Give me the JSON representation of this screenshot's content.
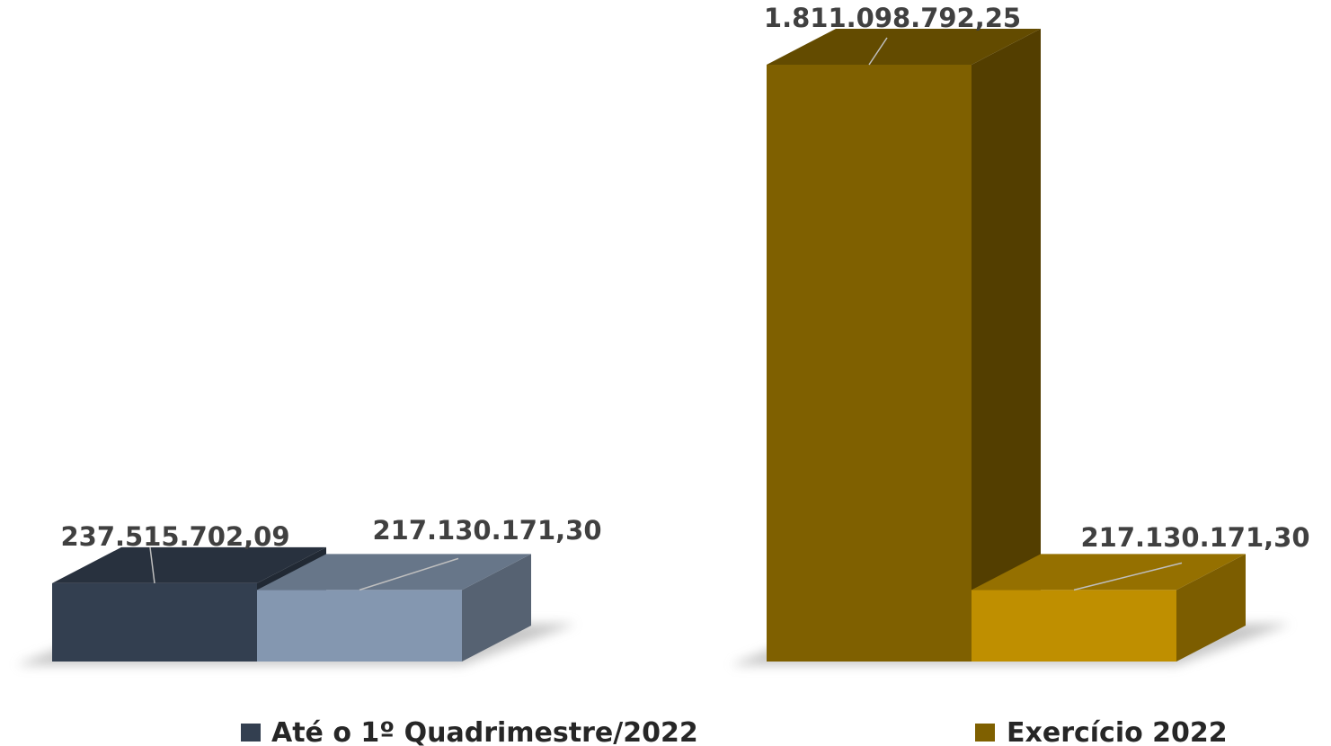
{
  "chart_data": {
    "type": "bar",
    "style": "3d-clustered",
    "groups": [
      {
        "name": "Até o 1º Quadrimestre/2022",
        "legend_color": "#333f50",
        "bars": [
          {
            "value": 237515702.09,
            "label": "237.515.702,09",
            "color": "#333f50"
          },
          {
            "value": 217130171.3,
            "label": "217.130.171,30",
            "color": "#8497b0"
          }
        ]
      },
      {
        "name": "Exercício 2022",
        "legend_color": "#7f6000",
        "bars": [
          {
            "value": 1811098792.25,
            "label": "1.811.098.792,25",
            "color": "#7f6000"
          },
          {
            "value": 217130171.3,
            "label": "217.130.171,30",
            "color": "#bf8f00"
          }
        ]
      }
    ],
    "legend": [
      "Até o 1º Quadrimestre/2022",
      "Exercício 2022"
    ],
    "legend_position": "bottom",
    "ylim": [
      0,
      1811098792.25
    ],
    "grid": false,
    "title": "",
    "xlabel": "",
    "ylabel": ""
  }
}
